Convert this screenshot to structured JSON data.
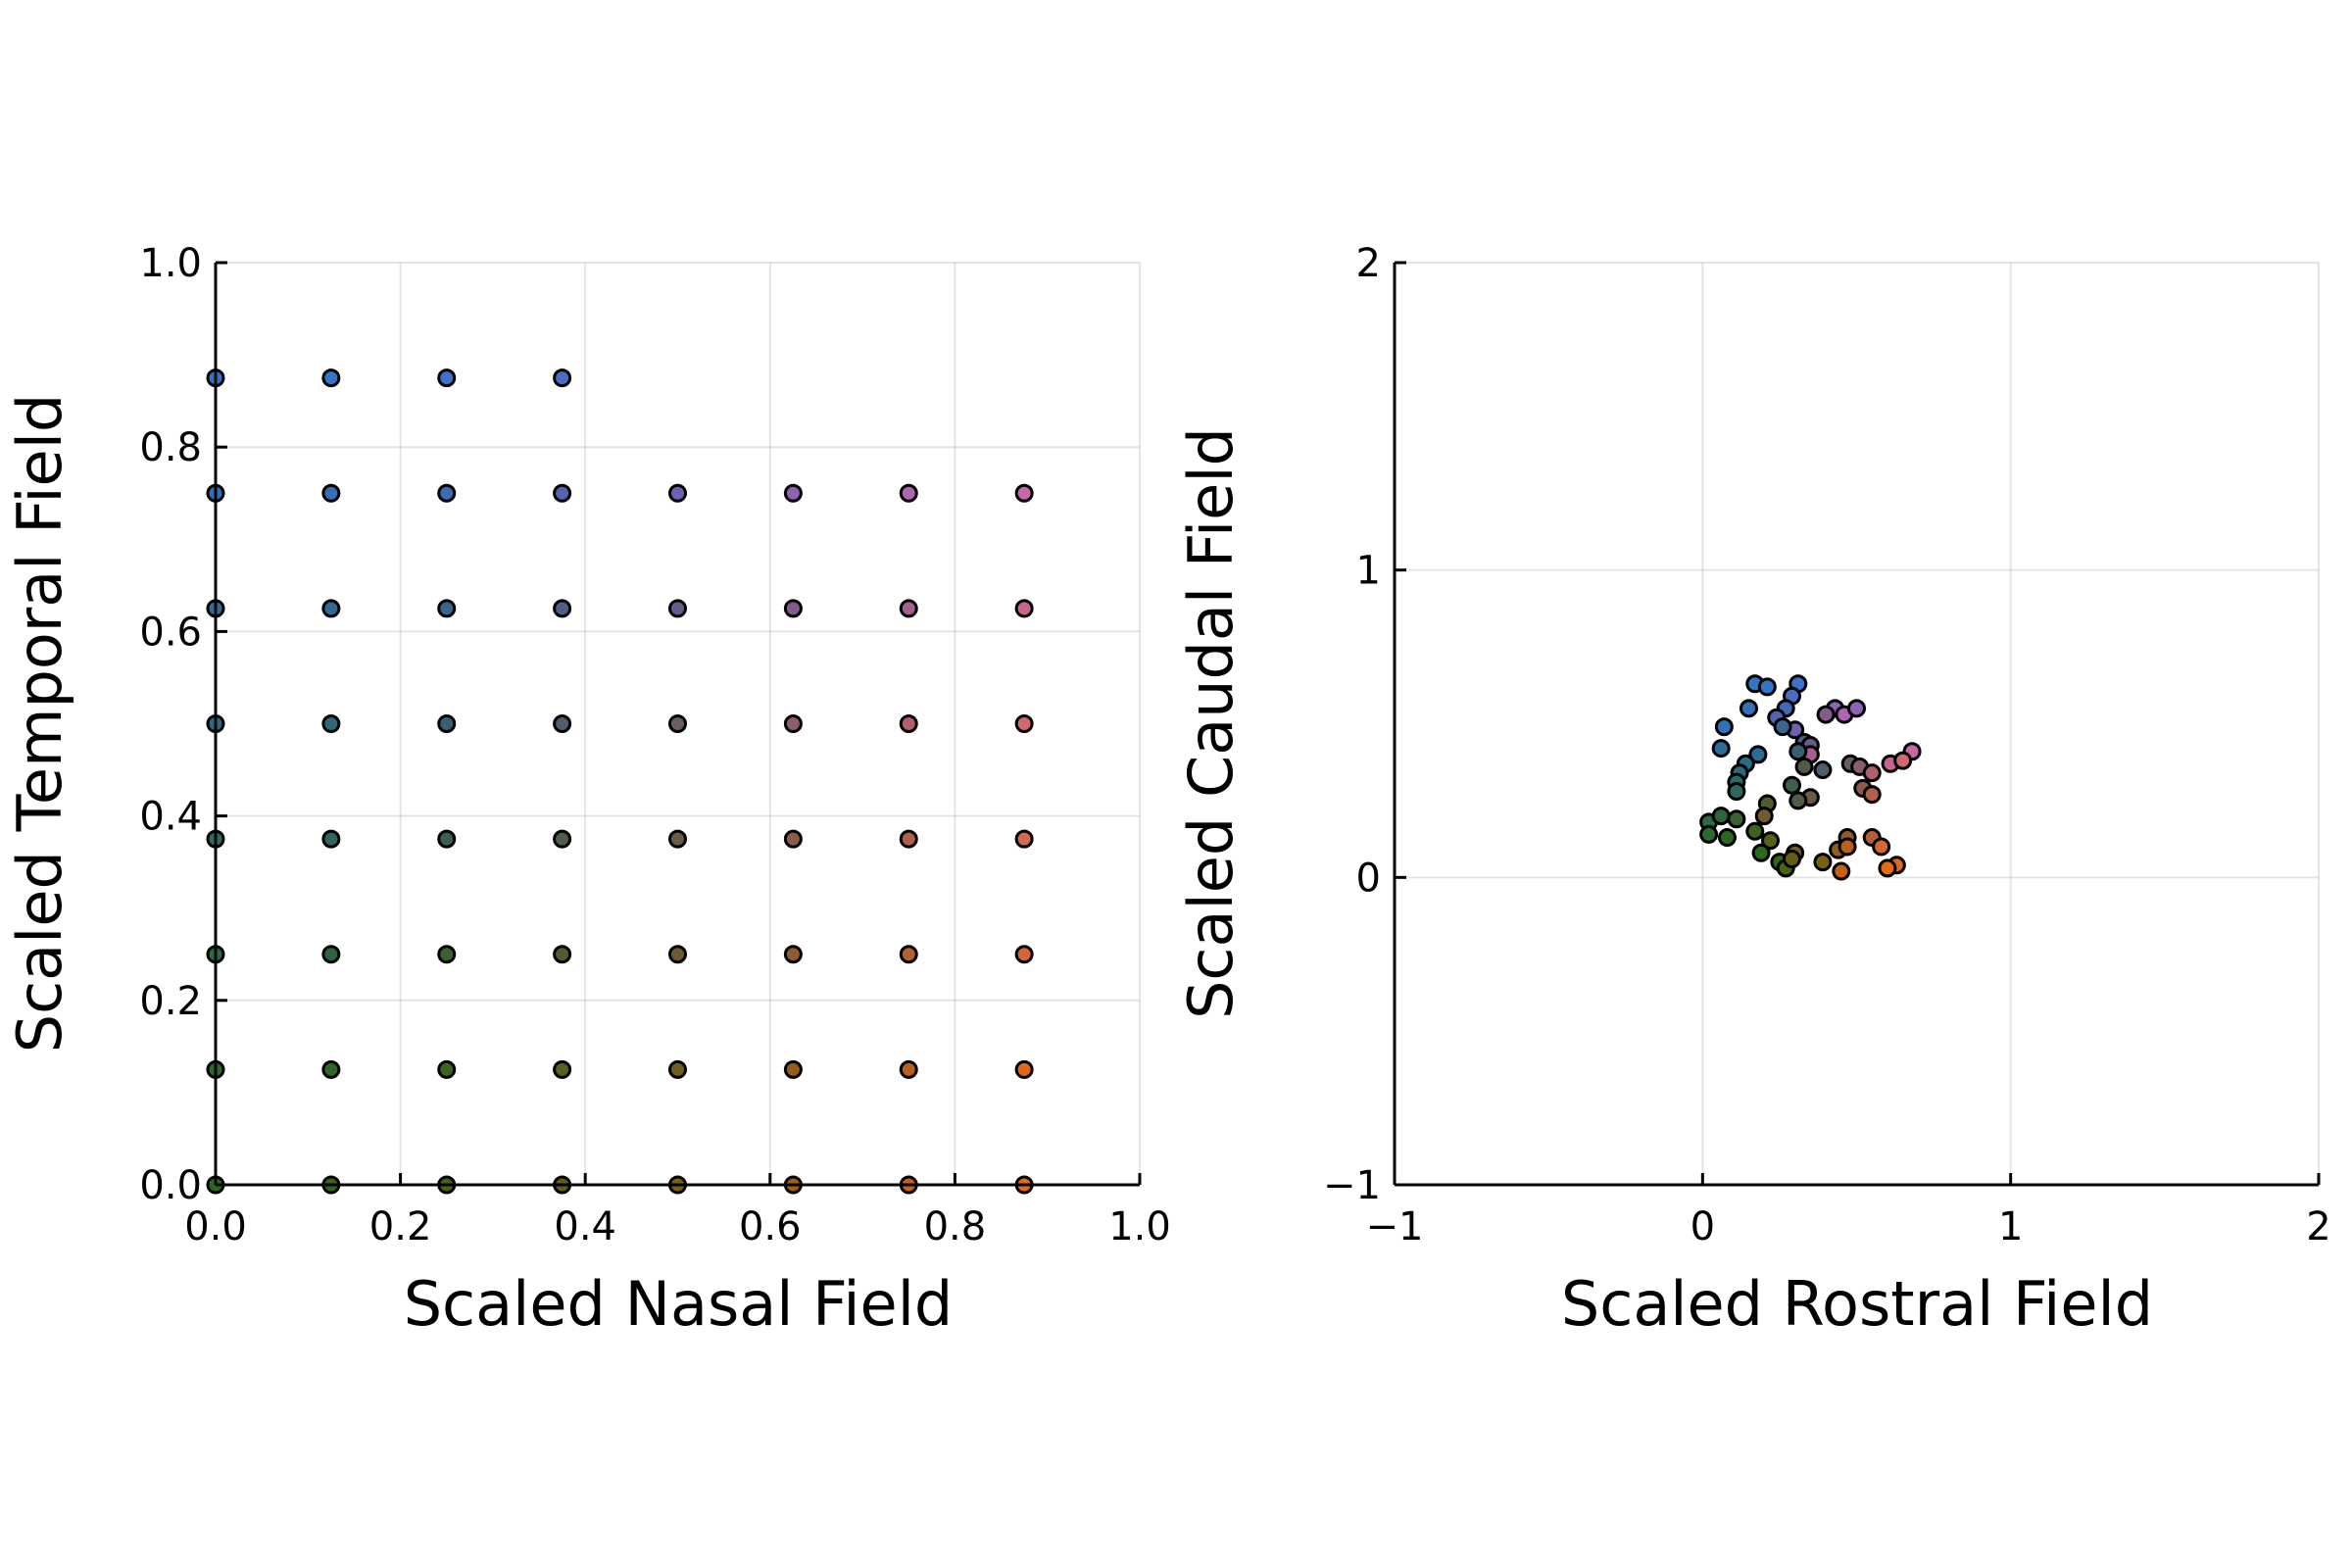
{
  "chart_data": [
    {
      "type": "scatter",
      "title": "",
      "xlabel": "Scaled Nasal Field",
      "ylabel": "Scaled Temporal Field",
      "xlim": [
        0,
        1
      ],
      "ylim": [
        0,
        1
      ],
      "xticks": [
        "0.0",
        "0.2",
        "0.4",
        "0.6",
        "0.8",
        "1.0"
      ],
      "xtick_values": [
        0,
        0.2,
        0.4,
        0.6,
        0.8,
        1.0
      ],
      "yticks": [
        "0.0",
        "0.2",
        "0.4",
        "0.6",
        "0.8",
        "1.0"
      ],
      "ytick_values": [
        0,
        0.2,
        0.4,
        0.6,
        0.8,
        1.0
      ],
      "grid": true,
      "legend": "none",
      "points": [
        {
          "x": 0.0,
          "y": 0.875,
          "color": "#2f78c8"
        },
        {
          "x": 0.125,
          "y": 0.875,
          "color": "#2f78c8"
        },
        {
          "x": 0.25,
          "y": 0.875,
          "color": "#3e72c8"
        },
        {
          "x": 0.375,
          "y": 0.875,
          "color": "#4a6dc4"
        },
        {
          "x": 0.0,
          "y": 0.75,
          "color": "#2d73b8"
        },
        {
          "x": 0.125,
          "y": 0.75,
          "color": "#356fb4"
        },
        {
          "x": 0.25,
          "y": 0.75,
          "color": "#3f6ab4"
        },
        {
          "x": 0.375,
          "y": 0.75,
          "color": "#5663b0"
        },
        {
          "x": 0.5,
          "y": 0.75,
          "color": "#6f60b4"
        },
        {
          "x": 0.625,
          "y": 0.75,
          "color": "#8e62b4"
        },
        {
          "x": 0.75,
          "y": 0.75,
          "color": "#b064b4"
        },
        {
          "x": 0.875,
          "y": 0.75,
          "color": "#c868a8"
        },
        {
          "x": 0.0,
          "y": 0.625,
          "color": "#2a6e9c"
        },
        {
          "x": 0.125,
          "y": 0.625,
          "color": "#2e6a98"
        },
        {
          "x": 0.25,
          "y": 0.625,
          "color": "#38668e"
        },
        {
          "x": 0.375,
          "y": 0.625,
          "color": "#4d5f88"
        },
        {
          "x": 0.5,
          "y": 0.625,
          "color": "#665c8c"
        },
        {
          "x": 0.625,
          "y": 0.625,
          "color": "#845c8c"
        },
        {
          "x": 0.75,
          "y": 0.625,
          "color": "#a85e90"
        },
        {
          "x": 0.875,
          "y": 0.625,
          "color": "#c86490"
        },
        {
          "x": 0.0,
          "y": 0.5,
          "color": "#2a6c84"
        },
        {
          "x": 0.125,
          "y": 0.5,
          "color": "#2c6878"
        },
        {
          "x": 0.25,
          "y": 0.5,
          "color": "#3a6070"
        },
        {
          "x": 0.375,
          "y": 0.5,
          "color": "#4e5c6c"
        },
        {
          "x": 0.5,
          "y": 0.5,
          "color": "#6a5e66"
        },
        {
          "x": 0.625,
          "y": 0.5,
          "color": "#8c5e6c"
        },
        {
          "x": 0.75,
          "y": 0.5,
          "color": "#b0606c"
        },
        {
          "x": 0.875,
          "y": 0.5,
          "color": "#d06870"
        },
        {
          "x": 0.0,
          "y": 0.375,
          "color": "#2a6c66"
        },
        {
          "x": 0.125,
          "y": 0.375,
          "color": "#2e6660"
        },
        {
          "x": 0.25,
          "y": 0.375,
          "color": "#3c6050"
        },
        {
          "x": 0.375,
          "y": 0.375,
          "color": "#505c48"
        },
        {
          "x": 0.5,
          "y": 0.375,
          "color": "#6c5a48"
        },
        {
          "x": 0.625,
          "y": 0.375,
          "color": "#8c5c48"
        },
        {
          "x": 0.75,
          "y": 0.375,
          "color": "#b0604c"
        },
        {
          "x": 0.875,
          "y": 0.375,
          "color": "#d46850"
        },
        {
          "x": 0.0,
          "y": 0.25,
          "color": "#2a6a48"
        },
        {
          "x": 0.125,
          "y": 0.25,
          "color": "#2c6440"
        },
        {
          "x": 0.25,
          "y": 0.25,
          "color": "#3a6034"
        },
        {
          "x": 0.375,
          "y": 0.25,
          "color": "#4e5e30"
        },
        {
          "x": 0.5,
          "y": 0.25,
          "color": "#6c5c30"
        },
        {
          "x": 0.625,
          "y": 0.25,
          "color": "#8e5c30"
        },
        {
          "x": 0.75,
          "y": 0.25,
          "color": "#b46034"
        },
        {
          "x": 0.875,
          "y": 0.25,
          "color": "#d86634"
        },
        {
          "x": 0.0,
          "y": 0.125,
          "color": "#2a6a2c"
        },
        {
          "x": 0.125,
          "y": 0.125,
          "color": "#2e6626"
        },
        {
          "x": 0.25,
          "y": 0.125,
          "color": "#3c6420"
        },
        {
          "x": 0.375,
          "y": 0.125,
          "color": "#54621c"
        },
        {
          "x": 0.5,
          "y": 0.125,
          "color": "#705e1a"
        },
        {
          "x": 0.625,
          "y": 0.125,
          "color": "#945e1a"
        },
        {
          "x": 0.75,
          "y": 0.125,
          "color": "#b8601c"
        },
        {
          "x": 0.875,
          "y": 0.125,
          "color": "#e06818"
        },
        {
          "x": 0.0,
          "y": 0.0,
          "color": "#2a6a1a"
        },
        {
          "x": 0.125,
          "y": 0.0,
          "color": "#346616"
        },
        {
          "x": 0.25,
          "y": 0.0,
          "color": "#486412"
        },
        {
          "x": 0.375,
          "y": 0.0,
          "color": "#606010"
        },
        {
          "x": 0.5,
          "y": 0.0,
          "color": "#7c6010"
        },
        {
          "x": 0.625,
          "y": 0.0,
          "color": "#a06010"
        },
        {
          "x": 0.75,
          "y": 0.0,
          "color": "#c46210"
        },
        {
          "x": 0.875,
          "y": 0.0,
          "color": "#e66a10"
        }
      ]
    },
    {
      "type": "scatter",
      "title": "",
      "xlabel": "Scaled Rostral Field",
      "ylabel": "Scaled Caudal Field",
      "xlim": [
        -1,
        2
      ],
      "ylim": [
        -1,
        2
      ],
      "xticks": [
        "−1",
        "0",
        "1",
        "2"
      ],
      "xtick_values": [
        -1,
        0,
        1,
        2
      ],
      "yticks": [
        "−1",
        "0",
        "1",
        "2"
      ],
      "ytick_values": [
        -1,
        0,
        1,
        2
      ],
      "grid": true,
      "legend": "none",
      "points": [
        {
          "x": 0.17,
          "y": 0.63,
          "color": "#2f78c8"
        },
        {
          "x": 0.21,
          "y": 0.62,
          "color": "#2f78c8"
        },
        {
          "x": 0.31,
          "y": 0.63,
          "color": "#3e72c8"
        },
        {
          "x": 0.29,
          "y": 0.59,
          "color": "#4a6dc4"
        },
        {
          "x": 0.07,
          "y": 0.49,
          "color": "#2d73b8"
        },
        {
          "x": 0.15,
          "y": 0.55,
          "color": "#356fb4"
        },
        {
          "x": 0.27,
          "y": 0.55,
          "color": "#3f6ab4"
        },
        {
          "x": 0.24,
          "y": 0.52,
          "color": "#5663b0"
        },
        {
          "x": 0.3,
          "y": 0.48,
          "color": "#6f60b4"
        },
        {
          "x": 0.43,
          "y": 0.55,
          "color": "#8e62b4"
        },
        {
          "x": 0.46,
          "y": 0.53,
          "color": "#b064b4"
        },
        {
          "x": 0.5,
          "y": 0.55,
          "color": "#8e62b4"
        },
        {
          "x": 0.06,
          "y": 0.42,
          "color": "#2a6e9c"
        },
        {
          "x": 0.18,
          "y": 0.4,
          "color": "#2e6a98"
        },
        {
          "x": 0.26,
          "y": 0.49,
          "color": "#38668e"
        },
        {
          "x": 0.33,
          "y": 0.44,
          "color": "#4d5f88"
        },
        {
          "x": 0.35,
          "y": 0.43,
          "color": "#665c8c"
        },
        {
          "x": 0.4,
          "y": 0.53,
          "color": "#845c8c"
        },
        {
          "x": 0.35,
          "y": 0.4,
          "color": "#a85e90"
        },
        {
          "x": 0.68,
          "y": 0.41,
          "color": "#c868a8"
        },
        {
          "x": 0.14,
          "y": 0.37,
          "color": "#2a6c84"
        },
        {
          "x": 0.12,
          "y": 0.34,
          "color": "#2c6878"
        },
        {
          "x": 0.31,
          "y": 0.41,
          "color": "#3a6070"
        },
        {
          "x": 0.39,
          "y": 0.35,
          "color": "#4e5c6c"
        },
        {
          "x": 0.48,
          "y": 0.37,
          "color": "#6a5e66"
        },
        {
          "x": 0.51,
          "y": 0.36,
          "color": "#8c5e6c"
        },
        {
          "x": 0.55,
          "y": 0.34,
          "color": "#b0606c"
        },
        {
          "x": 0.61,
          "y": 0.37,
          "color": "#c86490"
        },
        {
          "x": 0.65,
          "y": 0.38,
          "color": "#d06870"
        },
        {
          "x": 0.11,
          "y": 0.31,
          "color": "#2a6c66"
        },
        {
          "x": 0.11,
          "y": 0.28,
          "color": "#2e6660"
        },
        {
          "x": 0.29,
          "y": 0.3,
          "color": "#3c6050"
        },
        {
          "x": 0.33,
          "y": 0.36,
          "color": "#505c48"
        },
        {
          "x": 0.35,
          "y": 0.26,
          "color": "#6c5a48"
        },
        {
          "x": 0.52,
          "y": 0.29,
          "color": "#8c5c48"
        },
        {
          "x": 0.55,
          "y": 0.27,
          "color": "#b0604c"
        },
        {
          "x": 0.31,
          "y": 0.25,
          "color": "#505c48"
        },
        {
          "x": 0.02,
          "y": 0.18,
          "color": "#2a6a48"
        },
        {
          "x": 0.06,
          "y": 0.2,
          "color": "#2c6440"
        },
        {
          "x": 0.11,
          "y": 0.19,
          "color": "#3a6034"
        },
        {
          "x": 0.21,
          "y": 0.24,
          "color": "#4e5e30"
        },
        {
          "x": 0.2,
          "y": 0.2,
          "color": "#6c5c30"
        },
        {
          "x": 0.47,
          "y": 0.13,
          "color": "#8e5c30"
        },
        {
          "x": 0.55,
          "y": 0.13,
          "color": "#b46034"
        },
        {
          "x": 0.58,
          "y": 0.1,
          "color": "#d86634"
        },
        {
          "x": 0.02,
          "y": 0.14,
          "color": "#2a6a2c"
        },
        {
          "x": 0.08,
          "y": 0.13,
          "color": "#2e6626"
        },
        {
          "x": 0.17,
          "y": 0.15,
          "color": "#3c6420"
        },
        {
          "x": 0.22,
          "y": 0.12,
          "color": "#54621c"
        },
        {
          "x": 0.3,
          "y": 0.08,
          "color": "#705e1a"
        },
        {
          "x": 0.44,
          "y": 0.09,
          "color": "#945e1a"
        },
        {
          "x": 0.47,
          "y": 0.1,
          "color": "#b8601c"
        },
        {
          "x": 0.63,
          "y": 0.04,
          "color": "#e06818"
        },
        {
          "x": 0.19,
          "y": 0.08,
          "color": "#2a6a1a"
        },
        {
          "x": 0.25,
          "y": 0.05,
          "color": "#346616"
        },
        {
          "x": 0.27,
          "y": 0.03,
          "color": "#486412"
        },
        {
          "x": 0.29,
          "y": 0.06,
          "color": "#606010"
        },
        {
          "x": 0.39,
          "y": 0.05,
          "color": "#7c6010"
        },
        {
          "x": 0.45,
          "y": 0.02,
          "color": "#c46210"
        },
        {
          "x": 0.6,
          "y": 0.03,
          "color": "#e66a10"
        }
      ]
    }
  ]
}
